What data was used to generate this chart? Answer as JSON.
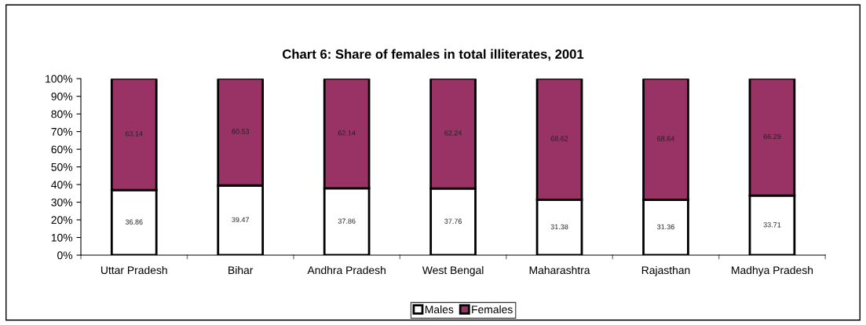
{
  "chart_data": {
    "type": "bar",
    "title": "Chart 6: Share of females in total illiterates, 2001",
    "categories": [
      "Uttar Pradesh",
      "Bihar",
      "Andhra Pradesh",
      "West Bengal",
      "Maharashtra",
      "Rajasthan",
      "Madhya Pradesh"
    ],
    "series": [
      {
        "name": "Males",
        "color": "#ffffff",
        "values": [
          36.86,
          39.47,
          37.86,
          37.76,
          31.38,
          31.36,
          33.71
        ]
      },
      {
        "name": "Females",
        "color": "#993366",
        "values": [
          63.14,
          60.53,
          62.14,
          62.24,
          68.62,
          68.64,
          66.29
        ]
      }
    ],
    "stacked": true,
    "data_labels": true,
    "ylim": [
      0,
      100
    ],
    "yticks": [
      {
        "value": 0,
        "label": "0%"
      },
      {
        "value": 10,
        "label": "10%"
      },
      {
        "value": 20,
        "label": "20%"
      },
      {
        "value": 30,
        "label": "30%"
      },
      {
        "value": 40,
        "label": "40%"
      },
      {
        "value": 50,
        "label": "50%"
      },
      {
        "value": 60,
        "label": "60%"
      },
      {
        "value": 70,
        "label": "70%"
      },
      {
        "value": 80,
        "label": "80%"
      },
      {
        "value": 90,
        "label": "90%"
      },
      {
        "value": 100,
        "label": "100%"
      }
    ],
    "grid": false,
    "legend": "bottom"
  }
}
